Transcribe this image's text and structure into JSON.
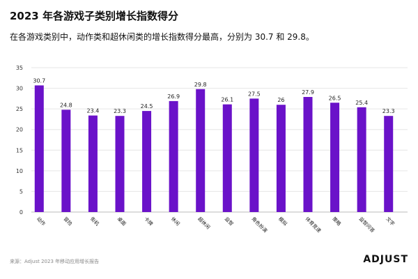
{
  "title": "2023 年各游戏子类别增长指数得分",
  "subtitle": "在各游戏类别中，动作类和超休闲类的增长指数得分最高，分别为 30.7 和 29.8。",
  "source": "来源：Adjust 2023 年移动应用增长报告",
  "logo": "ADJUST",
  "chart_data": {
    "type": "bar",
    "categories": [
      "动作",
      "冒险",
      "街机",
      "桌面",
      "卡牌",
      "休闲",
      "超休闲",
      "益智",
      "角色扮演",
      "模拟",
      "体育竞速",
      "策略",
      "益智问答",
      "文字"
    ],
    "values": [
      30.7,
      24.8,
      23.4,
      23.3,
      24.5,
      26.9,
      29.8,
      26.1,
      27.5,
      26,
      27.9,
      26.5,
      25.4,
      23.3
    ],
    "ylim": [
      0,
      35
    ],
    "yticks": [
      0,
      5,
      10,
      15,
      20,
      25,
      30,
      35
    ],
    "grid": true,
    "bar_color": "#6a12c9"
  }
}
